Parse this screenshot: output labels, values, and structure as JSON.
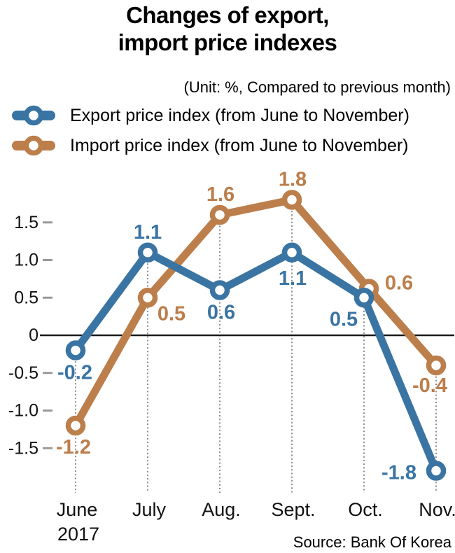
{
  "header": {
    "title_line1": "Changes of export,",
    "title_line2": "import price indexes",
    "subtitle": "(Unit: %, Compared to previous month)"
  },
  "legend": {
    "items": [
      {
        "name": "export",
        "label": "Export price index (from June to November)",
        "color": "#3A74A3"
      },
      {
        "name": "import",
        "label": "Import price index (from June to November)",
        "color": "#BC7E4B"
      }
    ]
  },
  "chart_data": {
    "type": "line",
    "title": "Changes of export, import price indexes",
    "unit_note": "(Unit: %, Compared to previous month)",
    "categories": [
      "June",
      "July",
      "Aug.",
      "Sept.",
      "Oct.",
      "Nov."
    ],
    "first_category_year": "2017",
    "series": [
      {
        "name": "Export price index (from June to November)",
        "color": "#3A74A3",
        "values": [
          -0.2,
          1.1,
          0.6,
          1.1,
          0.5,
          -1.8
        ],
        "label_offsets": [
          [
            -1,
            31
          ],
          [
            0,
            -30
          ],
          [
            2,
            31
          ],
          [
            1,
            36
          ],
          [
            -29,
            30
          ],
          [
            -53,
            2
          ]
        ],
        "point_draw_offsets": [
          [
            0,
            0
          ],
          [
            0,
            0
          ],
          [
            0,
            0
          ],
          [
            0,
            0
          ],
          [
            0,
            0
          ],
          [
            0,
            0
          ]
        ]
      },
      {
        "name": "Import price index (from June to November)",
        "color": "#BC7E4B",
        "values": [
          -1.2,
          0.5,
          1.6,
          1.8,
          0.6,
          -0.4
        ],
        "label_offsets": [
          [
            -3,
            30
          ],
          [
            34,
            22
          ],
          [
            1,
            -30
          ],
          [
            1,
            -30
          ],
          [
            43,
            -9
          ],
          [
            -9,
            28
          ]
        ],
        "point_draw_offsets": [
          [
            0,
            0
          ],
          [
            0,
            0
          ],
          [
            0,
            0
          ],
          [
            0,
            0
          ],
          [
            7,
            -2
          ],
          [
            0,
            0
          ]
        ]
      }
    ],
    "y_ticks": [
      {
        "label": "1.5",
        "value": 1.5
      },
      {
        "label": "1.0",
        "value": 1.0
      },
      {
        "label": "0.5",
        "value": 0.5
      },
      {
        "label": "0",
        "value": 0
      },
      {
        "label": "-0.5",
        "value": -0.5
      },
      {
        "label": "-1.0",
        "value": -1.0
      },
      {
        "label": "-1.5",
        "value": -1.5
      }
    ],
    "ylim": [
      -1.9,
      2.0
    ],
    "grid": "vertical dotted line per category",
    "legend_position": "top-left",
    "colors": {
      "zero_axis": "#1A1A1A",
      "gridline": "#8C8C8C",
      "tick_dash": "#999999"
    }
  },
  "source": {
    "text": "Source: Bank Of Korea"
  }
}
